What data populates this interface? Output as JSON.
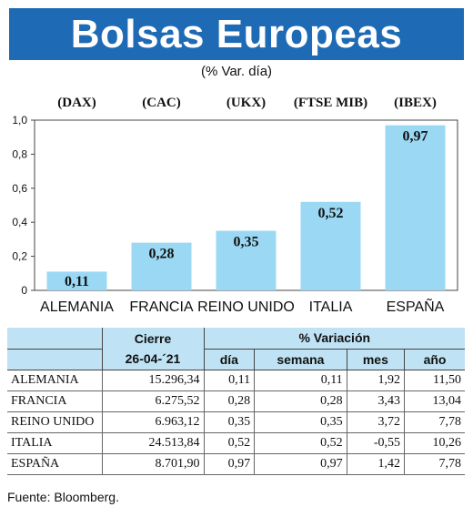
{
  "title": "Bolsas Europeas",
  "subtitle": "(% Var. día)",
  "colors": {
    "title_bg": "#1e6ab4",
    "bar": "#9bd8f4",
    "header_bg": "#bfe3f4"
  },
  "chart_data": {
    "type": "bar",
    "index_labels": [
      "(DAX)",
      "(CAC)",
      "(UKX)",
      "(FTSE MIB)",
      "(IBEX)"
    ],
    "categories": [
      "ALEMANIA",
      "FRANCIA",
      "REINO UNIDO",
      "ITALIA",
      "ESPAÑA"
    ],
    "values": [
      0.11,
      0.28,
      0.35,
      0.52,
      0.97
    ],
    "value_labels": [
      "0,11",
      "0,28",
      "0,35",
      "0,52",
      "0,97"
    ],
    "yticks": [
      0,
      0.2,
      0.4,
      0.6,
      0.8,
      1.0
    ],
    "ytick_labels": [
      "0",
      "0,2",
      "0,4",
      "0,6",
      "0,8",
      "1,0"
    ],
    "ylim": [
      0,
      1.0
    ],
    "grid": false
  },
  "table": {
    "header_cierre": "Cierre",
    "header_variacion": "% Variación",
    "date": "26-04-´21",
    "cols": [
      "día",
      "semana",
      "mes",
      "año"
    ],
    "rows": [
      {
        "name": "ALEMANIA",
        "cierre": "15.296,34",
        "dia": "0,11",
        "semana": "0,11",
        "mes": "1,92",
        "ano": "11,50"
      },
      {
        "name": "FRANCIA",
        "cierre": "6.275,52",
        "dia": "0,28",
        "semana": "0,28",
        "mes": "3,43",
        "ano": "13,04"
      },
      {
        "name": "REINO UNIDO",
        "cierre": "6.963,12",
        "dia": "0,35",
        "semana": "0,35",
        "mes": "3,72",
        "ano": "7,78"
      },
      {
        "name": "ITALIA",
        "cierre": "24.513,84",
        "dia": "0,52",
        "semana": "0,52",
        "mes": "-0,55",
        "ano": "10,26"
      },
      {
        "name": "ESPAÑA",
        "cierre": "8.701,90",
        "dia": "0,97",
        "semana": "0,97",
        "mes": "1,42",
        "ano": "7,78"
      }
    ]
  },
  "source": "Fuente: Bloomberg."
}
